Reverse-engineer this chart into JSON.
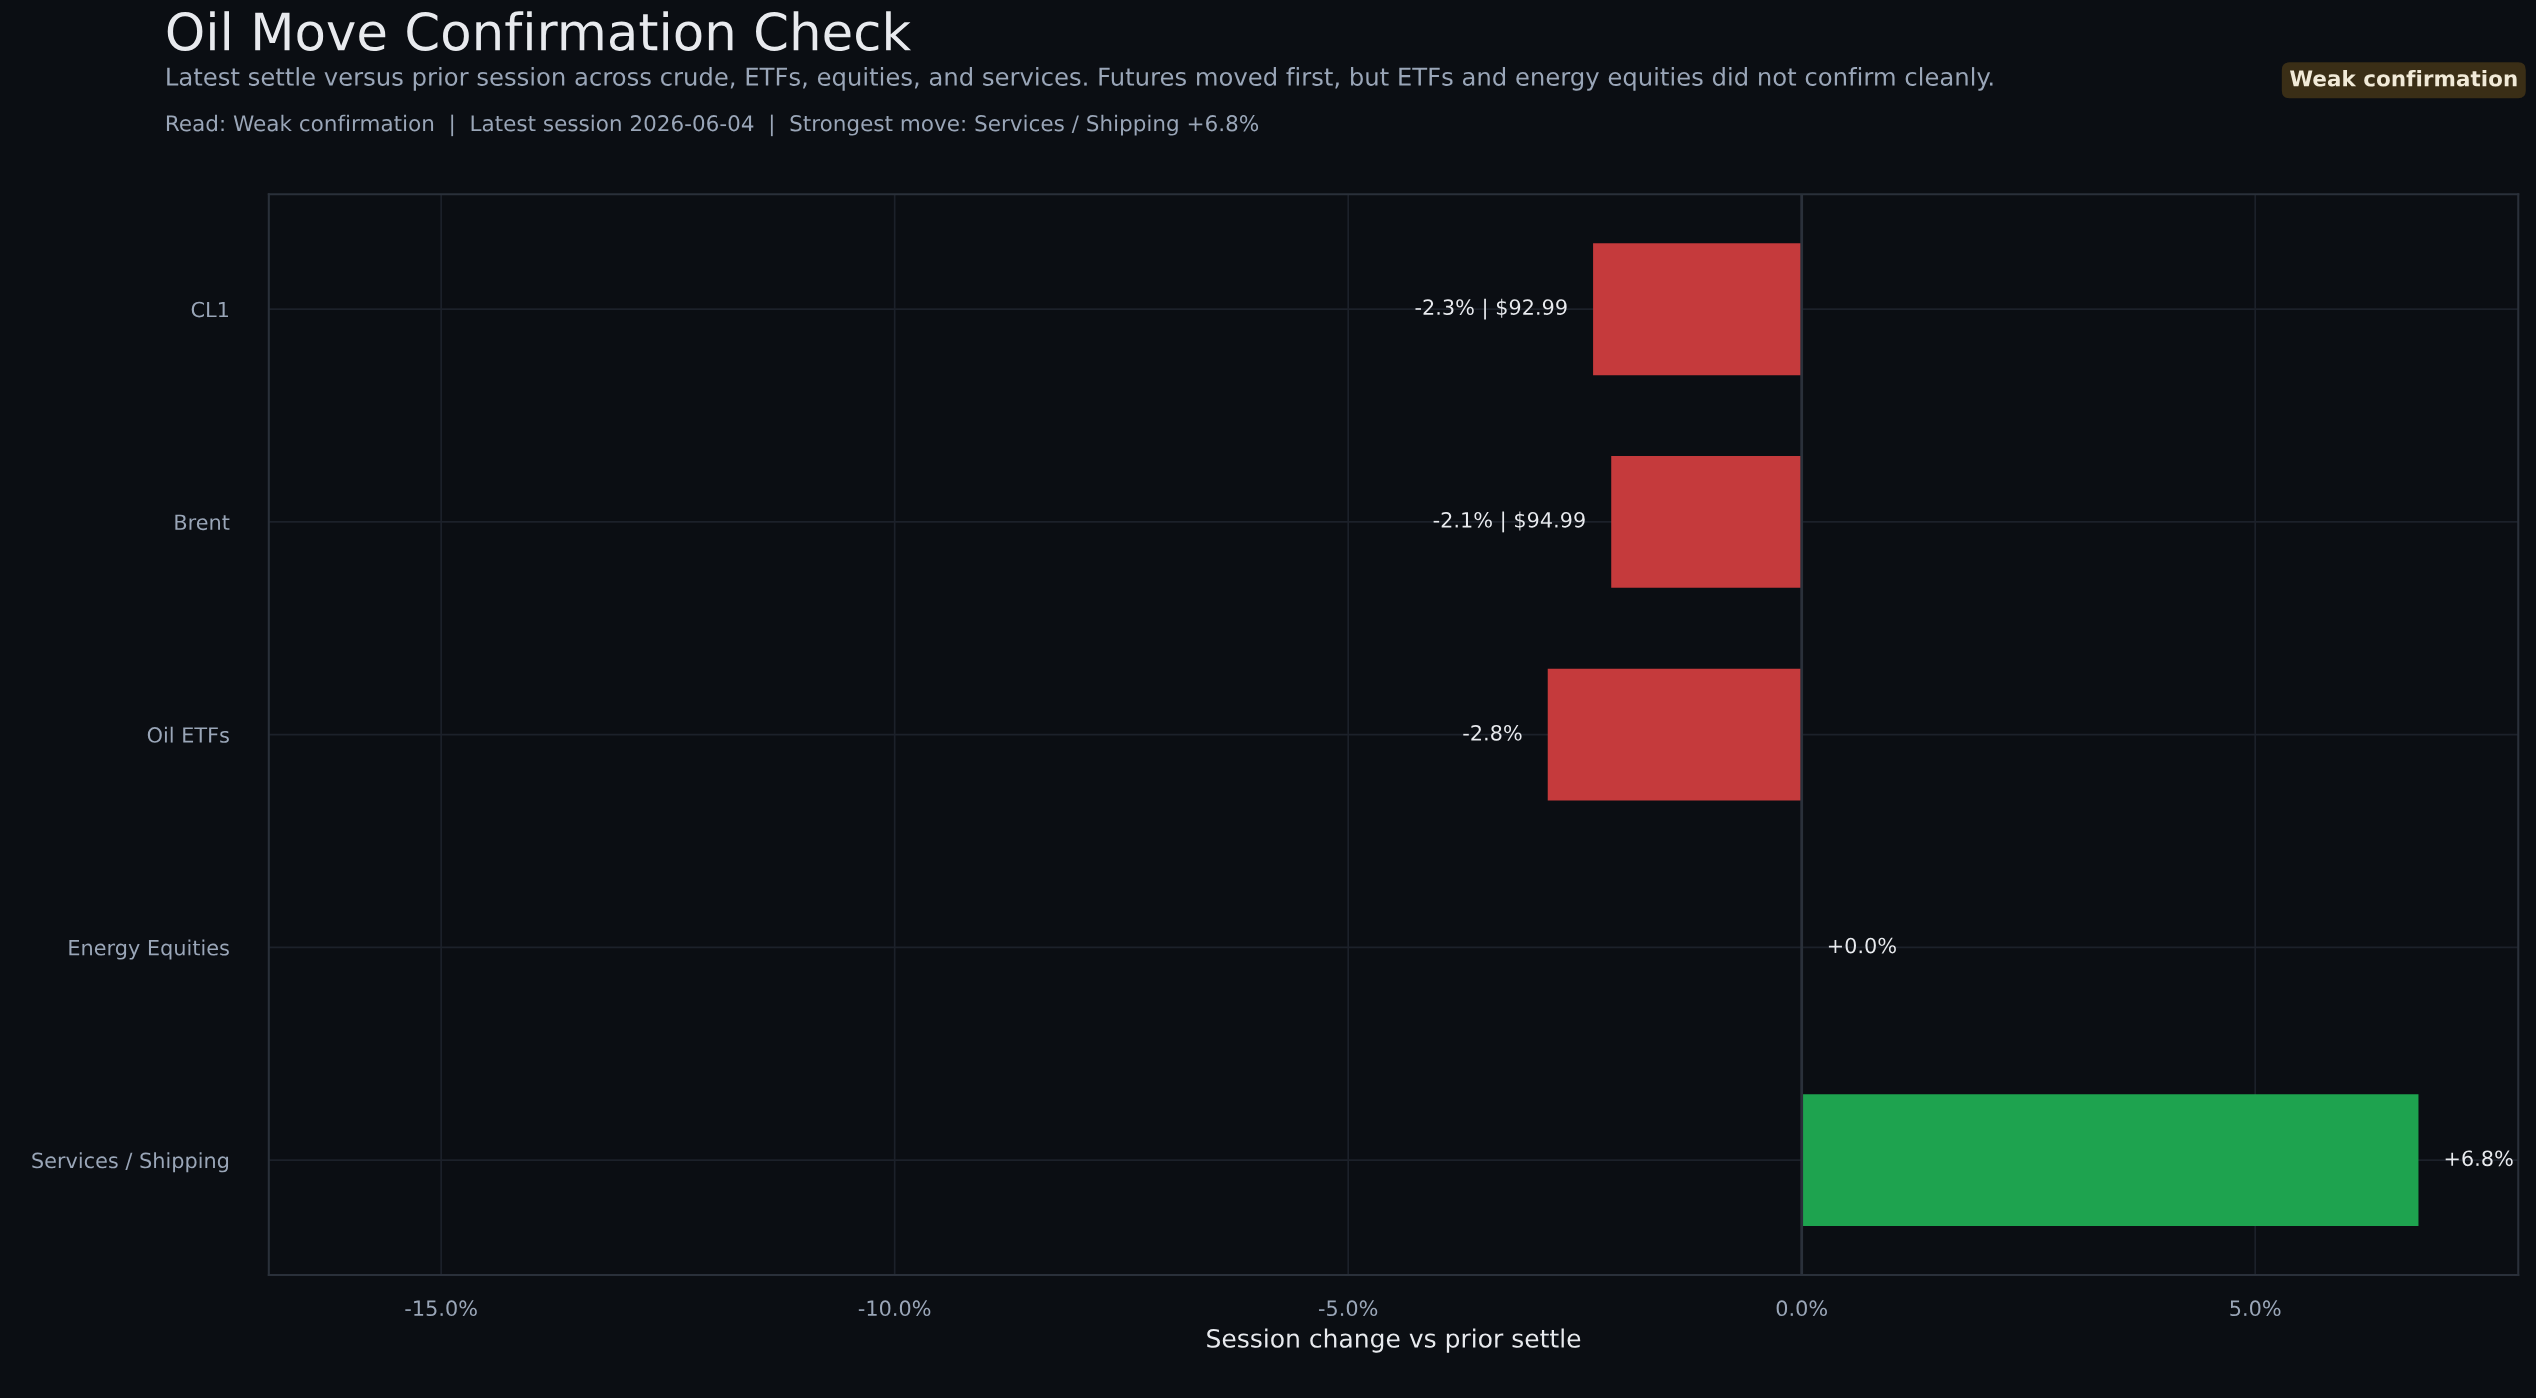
{
  "chart_data": {
    "type": "bar",
    "orientation": "horizontal",
    "title": "Oil Move Confirmation Check",
    "subtitle": "Latest settle versus prior session across crude, ETFs, equities, and services. Futures moved first, but ETFs and energy equities did not confirm cleanly.",
    "annotations": [
      "Read: Weak confirmation  |  Latest session 2026-06-04  |  Strongest move: Services / Shipping +6.8%",
      "Weak confirmation"
    ],
    "xlabel": "Session change vs prior settle",
    "categories": [
      "CL1",
      "Brent",
      "Oil ETFs",
      "Energy Equities",
      "Services / Shipping"
    ],
    "values": [
      -2.3,
      -2.1,
      -2.8,
      0.0,
      6.8
    ],
    "colors": [
      "#c53a3c",
      "#c53a3c",
      "#c53a3c",
      "#1ea34f",
      "#1ea34f"
    ],
    "value_labels": [
      "-2.3% | $92.99",
      "-2.1% | $94.99",
      "-2.8%",
      "+0.0%",
      "+6.8%"
    ],
    "xlim": [
      -16.9,
      7.9
    ],
    "xticks": [
      {
        "value": -15,
        "label": "-15.0%"
      },
      {
        "value": -10,
        "label": "-10.0%"
      },
      {
        "value": -5,
        "label": "-5.0%"
      },
      {
        "value": 0,
        "label": "0.0%"
      },
      {
        "value": 5,
        "label": "5.0%"
      }
    ],
    "ref_lines": [
      {
        "axis": "x",
        "value": 0,
        "color": "#2a303a"
      }
    ],
    "grid": true,
    "legend": false
  }
}
